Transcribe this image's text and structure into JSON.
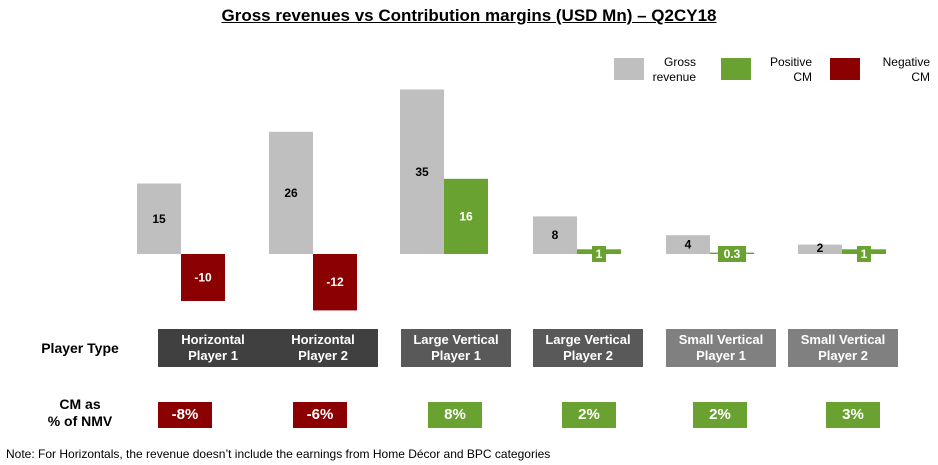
{
  "title": "Gross revenues vs Contribution margins (USD Mn) – Q2CY18",
  "legend": [
    {
      "label": "Gross revenue",
      "color": "#bfbfbf"
    },
    {
      "label": "Positive CM",
      "color": "#6aa232"
    },
    {
      "label": "Negative CM",
      "color": "#8b0000"
    }
  ],
  "colors": {
    "gross": "#bfbfbf",
    "positive": "#6aa232",
    "negative": "#8b0000",
    "label_text": "#000000"
  },
  "chart_data": {
    "type": "bar",
    "title": "Gross revenues vs Contribution margins (USD Mn) – Q2CY18",
    "categories": [
      "Horizontal Player 1",
      "Horizontal Player 2",
      "Large Vertical Player 1",
      "Large Vertical Player 2",
      "Small Vertical Player 1",
      "Small Vertical Player 2"
    ],
    "series": [
      {
        "name": "Gross revenue",
        "values": [
          15,
          26,
          35,
          8,
          4,
          2
        ]
      },
      {
        "name": "Contribution margin",
        "values": [
          -10,
          -12,
          16,
          1,
          0.3,
          1
        ]
      }
    ],
    "labels": {
      "gross": [
        "15",
        "26",
        "35",
        "8",
        "4",
        "2"
      ],
      "cm": [
        "-10",
        "-12",
        "16",
        "1",
        "0.3",
        "1"
      ]
    },
    "legend_position": "top-right"
  },
  "rows": {
    "player_type_label": "Player Type",
    "cm_label": "CM as\n% of NMV"
  },
  "players": [
    {
      "name": "Horizontal\nPlayer 1",
      "color": "#404040",
      "cm_pct": "-8%",
      "cm_color": "#8b0000"
    },
    {
      "name": "Horizontal\nPlayer 2",
      "color": "#404040",
      "cm_pct": "-6%",
      "cm_color": "#8b0000"
    },
    {
      "name": "Large Vertical\nPlayer 1",
      "color": "#595959",
      "cm_pct": "8%",
      "cm_color": "#6aa232"
    },
    {
      "name": "Large Vertical\nPlayer 2",
      "color": "#595959",
      "cm_pct": "2%",
      "cm_color": "#6aa232"
    },
    {
      "name": "Small Vertical\nPlayer 1",
      "color": "#808080",
      "cm_pct": "2%",
      "cm_color": "#6aa232"
    },
    {
      "name": "Small Vertical\nPlayer 2",
      "color": "#808080",
      "cm_pct": "3%",
      "cm_color": "#6aa232"
    }
  ],
  "note": "Note: For Horizontals, the revenue  doesn’t include the earnings from Home Décor and BPC categories"
}
